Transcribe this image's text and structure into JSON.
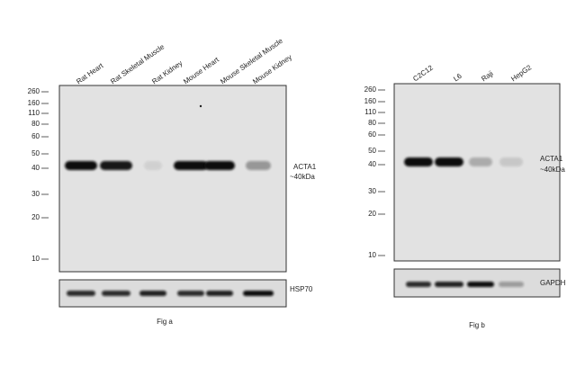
{
  "fig_a": {
    "lanes": [
      "Rat Heart",
      "Rat Skeletal Muscle",
      "Rat Kidney",
      "Mouse Heart",
      "Mouse Skeletal Muscle",
      "Mouse Kidney"
    ],
    "markers": [
      "260",
      "160",
      "110",
      "80",
      "60",
      "50",
      "40",
      "30",
      "20",
      "10"
    ],
    "target": "ACTA1",
    "size": "~40kDa",
    "loading_control": "HSP70",
    "caption": "Fig a"
  },
  "fig_b": {
    "lanes": [
      "C2C12",
      "L6",
      "Raji",
      "HepG2"
    ],
    "markers": [
      "260",
      "160",
      "110",
      "80",
      "60",
      "50",
      "40",
      "30",
      "20",
      "10"
    ],
    "target": "ACTA1",
    "size": "~40kDa",
    "loading_control": "GAPDH",
    "caption": "Fig b"
  }
}
